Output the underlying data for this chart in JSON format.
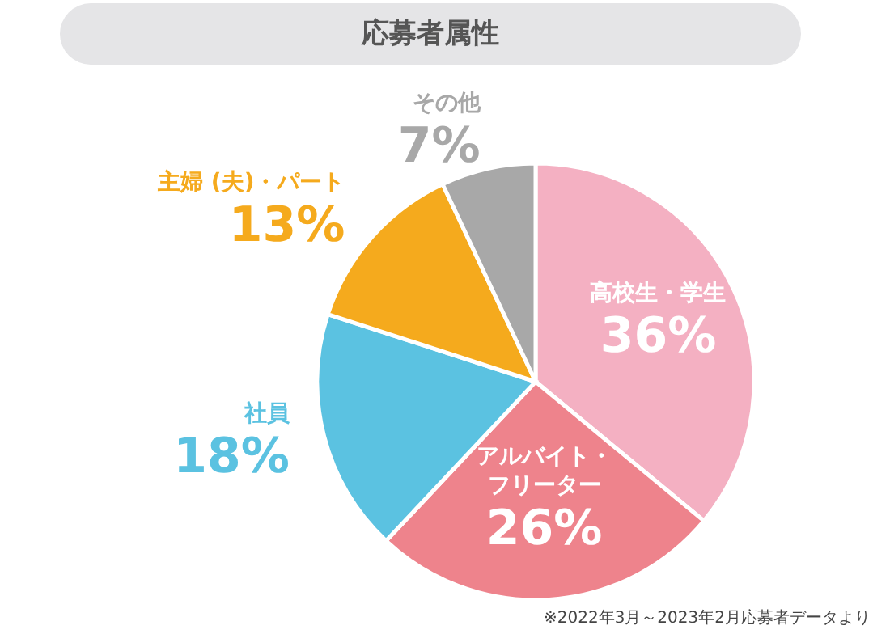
{
  "chart_data": {
    "type": "pie",
    "title": "応募者属性",
    "categories": [
      "高校生・学生",
      "アルバイト・フリーター",
      "社員",
      "主婦 (夫)・パート",
      "その他"
    ],
    "values": [
      36,
      26,
      18,
      13,
      7
    ],
    "colors": [
      "#f4b0c2",
      "#ee838c",
      "#5bc2e1",
      "#f5aa1d",
      "#a8a8a8"
    ],
    "value_labels": [
      "36%",
      "26%",
      "18%",
      "13%",
      "7%"
    ],
    "annotations": [
      "※2022年3月～2023年2月応募者データより"
    ]
  }
}
